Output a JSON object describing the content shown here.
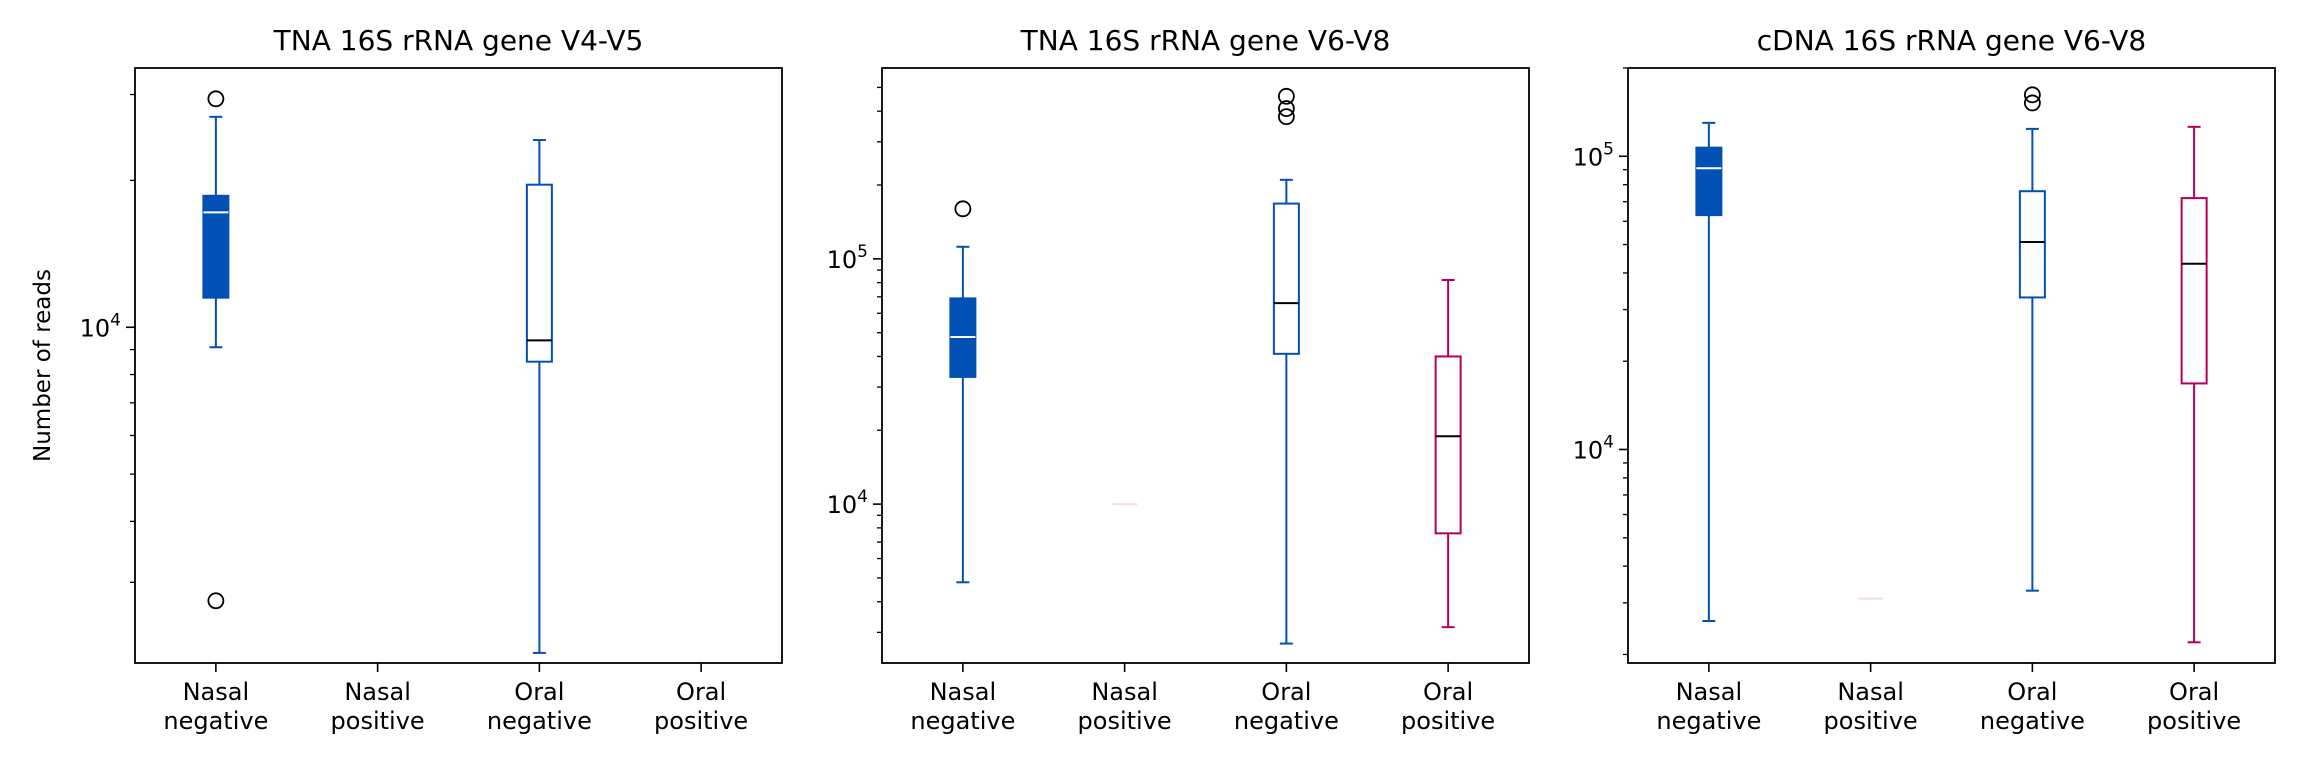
{
  "chart_data": [
    {
      "type": "box",
      "title": "TNA 16S rRNA gene V4-V5",
      "ylabel": "Number of reads",
      "yscale": "log",
      "ylim": [
        2050,
        34000
      ],
      "categories": [
        "Nasal negative",
        "Nasal positive",
        "Oral negative",
        "Oral positive"
      ],
      "tick_labels": [
        [
          "Nasal",
          "negative"
        ],
        [
          "Nasal",
          "positive"
        ],
        [
          "Oral",
          "negative"
        ],
        [
          "Oral",
          "positive"
        ]
      ],
      "y_ticks": [
        {
          "value": 10000,
          "base": "10",
          "exp": "4"
        }
      ],
      "minor_ticks": [
        2000,
        3000,
        4000,
        5000,
        6000,
        7000,
        8000,
        9000,
        20000,
        30000
      ],
      "boxes": [
        {
          "category": "Nasal negative",
          "style": "filled",
          "color": "#0050b5",
          "whislo": 9100,
          "q1": 11500,
          "median": 17200,
          "q3": 18600,
          "whishi": 27000,
          "fliers": [
            29400,
            2750
          ]
        },
        {
          "category": "Nasal positive",
          "style": "none"
        },
        {
          "category": "Oral negative",
          "style": "outline",
          "color": "#0050b5",
          "whislo": 2150,
          "q1": 8500,
          "median": 9400,
          "q3": 19600,
          "whishi": 24200,
          "fliers": []
        },
        {
          "category": "Oral positive",
          "style": "none"
        }
      ]
    },
    {
      "type": "box",
      "title": "TNA 16S rRNA gene V6-V8",
      "ylabel": "",
      "yscale": "log",
      "ylim": [
        2250,
        600000
      ],
      "categories": [
        "Nasal negative",
        "Nasal positive",
        "Oral negative",
        "Oral positive"
      ],
      "tick_labels": [
        [
          "Nasal",
          "negative"
        ],
        [
          "Nasal",
          "positive"
        ],
        [
          "Oral",
          "negative"
        ],
        [
          "Oral",
          "positive"
        ]
      ],
      "y_ticks": [
        {
          "value": 10000,
          "base": "10",
          "exp": "4"
        },
        {
          "value": 100000,
          "base": "10",
          "exp": "5"
        }
      ],
      "minor_ticks": [
        3000,
        4000,
        5000,
        6000,
        7000,
        8000,
        9000,
        20000,
        30000,
        40000,
        50000,
        60000,
        70000,
        80000,
        90000,
        200000,
        300000,
        400000,
        500000
      ],
      "boxes": [
        {
          "category": "Nasal negative",
          "style": "filled",
          "color": "#0050b5",
          "whislo": 4800,
          "q1": 33000,
          "median": 48000,
          "q3": 69000,
          "whishi": 112000,
          "fliers": [
            160000
          ]
        },
        {
          "category": "Nasal positive",
          "style": "flat",
          "color": "#f0dede",
          "whislo": 10000,
          "q1": 10000,
          "median": 10000,
          "q3": 10000,
          "whishi": 10000,
          "fliers": []
        },
        {
          "category": "Oral negative",
          "style": "outline",
          "color": "#0050b5",
          "whislo": 2700,
          "q1": 41000,
          "median": 66000,
          "q3": 168000,
          "whishi": 210000,
          "fliers": [
            460000,
            410000,
            380000
          ]
        },
        {
          "category": "Oral positive",
          "style": "outline",
          "color": "#b5005a",
          "whislo": 3150,
          "q1": 7600,
          "median": 18900,
          "q3": 40000,
          "whishi": 82000,
          "fliers": []
        }
      ]
    },
    {
      "type": "box",
      "title": "cDNA 16S rRNA gene V6-V8",
      "ylabel": "",
      "yscale": "log",
      "ylim": [
        1870,
        200000
      ],
      "categories": [
        "Nasal negative",
        "Nasal positive",
        "Oral negative",
        "Oral positive"
      ],
      "tick_labels": [
        [
          "Nasal",
          "negative"
        ],
        [
          "Nasal",
          "positive"
        ],
        [
          "Oral",
          "negative"
        ],
        [
          "Oral",
          "positive"
        ]
      ],
      "y_ticks": [
        {
          "value": 10000,
          "base": "10",
          "exp": "4"
        },
        {
          "value": 100000,
          "base": "10",
          "exp": "5"
        }
      ],
      "minor_ticks": [
        2000,
        3000,
        4000,
        5000,
        6000,
        7000,
        8000,
        9000,
        20000,
        30000,
        40000,
        50000,
        60000,
        70000,
        80000,
        90000,
        200000
      ],
      "boxes": [
        {
          "category": "Nasal negative",
          "style": "filled",
          "color": "#0050b5",
          "whislo": 2600,
          "q1": 63000,
          "median": 91000,
          "q3": 107000,
          "whishi": 130000,
          "fliers": []
        },
        {
          "category": "Nasal positive",
          "style": "flat",
          "color": "#f0dede",
          "whislo": 3100,
          "q1": 3100,
          "median": 3100,
          "q3": 3100,
          "whishi": 3100,
          "fliers": []
        },
        {
          "category": "Oral negative",
          "style": "outline",
          "color": "#0050b5",
          "whislo": 3300,
          "q1": 33000,
          "median": 51000,
          "q3": 76000,
          "whishi": 124000,
          "fliers": [
            162000,
            152000
          ]
        },
        {
          "category": "Oral positive",
          "style": "outline",
          "color": "#b5005a",
          "whislo": 2200,
          "q1": 16800,
          "median": 43000,
          "q3": 72000,
          "whishi": 126000,
          "fliers": []
        }
      ]
    }
  ]
}
